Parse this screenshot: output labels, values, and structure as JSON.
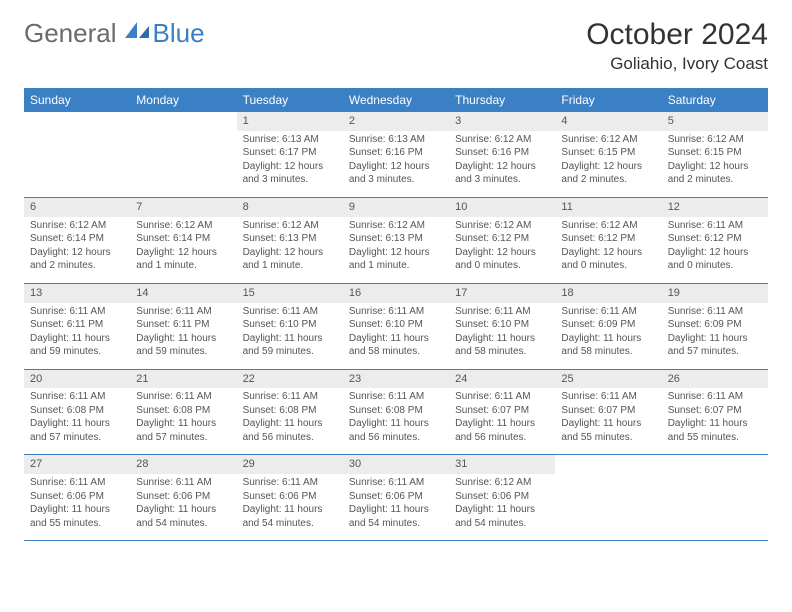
{
  "logo": {
    "general": "General",
    "blue": "Blue"
  },
  "title": "October 2024",
  "location": "Goliahio, Ivory Coast",
  "colors": {
    "brand_blue": "#3b7fc4",
    "header_bg": "#3b7fc4",
    "header_text": "#ffffff",
    "daynum_bg": "#ececec",
    "text": "#555555",
    "rule": "#3b7fc4"
  },
  "weekdays": [
    "Sunday",
    "Monday",
    "Tuesday",
    "Wednesday",
    "Thursday",
    "Friday",
    "Saturday"
  ],
  "weeks": [
    [
      null,
      null,
      {
        "n": "1",
        "sr": "Sunrise: 6:13 AM",
        "ss": "Sunset: 6:17 PM",
        "dl": "Daylight: 12 hours and 3 minutes."
      },
      {
        "n": "2",
        "sr": "Sunrise: 6:13 AM",
        "ss": "Sunset: 6:16 PM",
        "dl": "Daylight: 12 hours and 3 minutes."
      },
      {
        "n": "3",
        "sr": "Sunrise: 6:12 AM",
        "ss": "Sunset: 6:16 PM",
        "dl": "Daylight: 12 hours and 3 minutes."
      },
      {
        "n": "4",
        "sr": "Sunrise: 6:12 AM",
        "ss": "Sunset: 6:15 PM",
        "dl": "Daylight: 12 hours and 2 minutes."
      },
      {
        "n": "5",
        "sr": "Sunrise: 6:12 AM",
        "ss": "Sunset: 6:15 PM",
        "dl": "Daylight: 12 hours and 2 minutes."
      }
    ],
    [
      {
        "n": "6",
        "sr": "Sunrise: 6:12 AM",
        "ss": "Sunset: 6:14 PM",
        "dl": "Daylight: 12 hours and 2 minutes."
      },
      {
        "n": "7",
        "sr": "Sunrise: 6:12 AM",
        "ss": "Sunset: 6:14 PM",
        "dl": "Daylight: 12 hours and 1 minute."
      },
      {
        "n": "8",
        "sr": "Sunrise: 6:12 AM",
        "ss": "Sunset: 6:13 PM",
        "dl": "Daylight: 12 hours and 1 minute."
      },
      {
        "n": "9",
        "sr": "Sunrise: 6:12 AM",
        "ss": "Sunset: 6:13 PM",
        "dl": "Daylight: 12 hours and 1 minute."
      },
      {
        "n": "10",
        "sr": "Sunrise: 6:12 AM",
        "ss": "Sunset: 6:12 PM",
        "dl": "Daylight: 12 hours and 0 minutes."
      },
      {
        "n": "11",
        "sr": "Sunrise: 6:12 AM",
        "ss": "Sunset: 6:12 PM",
        "dl": "Daylight: 12 hours and 0 minutes."
      },
      {
        "n": "12",
        "sr": "Sunrise: 6:11 AM",
        "ss": "Sunset: 6:12 PM",
        "dl": "Daylight: 12 hours and 0 minutes."
      }
    ],
    [
      {
        "n": "13",
        "sr": "Sunrise: 6:11 AM",
        "ss": "Sunset: 6:11 PM",
        "dl": "Daylight: 11 hours and 59 minutes."
      },
      {
        "n": "14",
        "sr": "Sunrise: 6:11 AM",
        "ss": "Sunset: 6:11 PM",
        "dl": "Daylight: 11 hours and 59 minutes."
      },
      {
        "n": "15",
        "sr": "Sunrise: 6:11 AM",
        "ss": "Sunset: 6:10 PM",
        "dl": "Daylight: 11 hours and 59 minutes."
      },
      {
        "n": "16",
        "sr": "Sunrise: 6:11 AM",
        "ss": "Sunset: 6:10 PM",
        "dl": "Daylight: 11 hours and 58 minutes."
      },
      {
        "n": "17",
        "sr": "Sunrise: 6:11 AM",
        "ss": "Sunset: 6:10 PM",
        "dl": "Daylight: 11 hours and 58 minutes."
      },
      {
        "n": "18",
        "sr": "Sunrise: 6:11 AM",
        "ss": "Sunset: 6:09 PM",
        "dl": "Daylight: 11 hours and 58 minutes."
      },
      {
        "n": "19",
        "sr": "Sunrise: 6:11 AM",
        "ss": "Sunset: 6:09 PM",
        "dl": "Daylight: 11 hours and 57 minutes."
      }
    ],
    [
      {
        "n": "20",
        "sr": "Sunrise: 6:11 AM",
        "ss": "Sunset: 6:08 PM",
        "dl": "Daylight: 11 hours and 57 minutes."
      },
      {
        "n": "21",
        "sr": "Sunrise: 6:11 AM",
        "ss": "Sunset: 6:08 PM",
        "dl": "Daylight: 11 hours and 57 minutes."
      },
      {
        "n": "22",
        "sr": "Sunrise: 6:11 AM",
        "ss": "Sunset: 6:08 PM",
        "dl": "Daylight: 11 hours and 56 minutes."
      },
      {
        "n": "23",
        "sr": "Sunrise: 6:11 AM",
        "ss": "Sunset: 6:08 PM",
        "dl": "Daylight: 11 hours and 56 minutes."
      },
      {
        "n": "24",
        "sr": "Sunrise: 6:11 AM",
        "ss": "Sunset: 6:07 PM",
        "dl": "Daylight: 11 hours and 56 minutes."
      },
      {
        "n": "25",
        "sr": "Sunrise: 6:11 AM",
        "ss": "Sunset: 6:07 PM",
        "dl": "Daylight: 11 hours and 55 minutes."
      },
      {
        "n": "26",
        "sr": "Sunrise: 6:11 AM",
        "ss": "Sunset: 6:07 PM",
        "dl": "Daylight: 11 hours and 55 minutes."
      }
    ],
    [
      {
        "n": "27",
        "sr": "Sunrise: 6:11 AM",
        "ss": "Sunset: 6:06 PM",
        "dl": "Daylight: 11 hours and 55 minutes."
      },
      {
        "n": "28",
        "sr": "Sunrise: 6:11 AM",
        "ss": "Sunset: 6:06 PM",
        "dl": "Daylight: 11 hours and 54 minutes."
      },
      {
        "n": "29",
        "sr": "Sunrise: 6:11 AM",
        "ss": "Sunset: 6:06 PM",
        "dl": "Daylight: 11 hours and 54 minutes."
      },
      {
        "n": "30",
        "sr": "Sunrise: 6:11 AM",
        "ss": "Sunset: 6:06 PM",
        "dl": "Daylight: 11 hours and 54 minutes."
      },
      {
        "n": "31",
        "sr": "Sunrise: 6:12 AM",
        "ss": "Sunset: 6:06 PM",
        "dl": "Daylight: 11 hours and 54 minutes."
      },
      null,
      null
    ]
  ]
}
